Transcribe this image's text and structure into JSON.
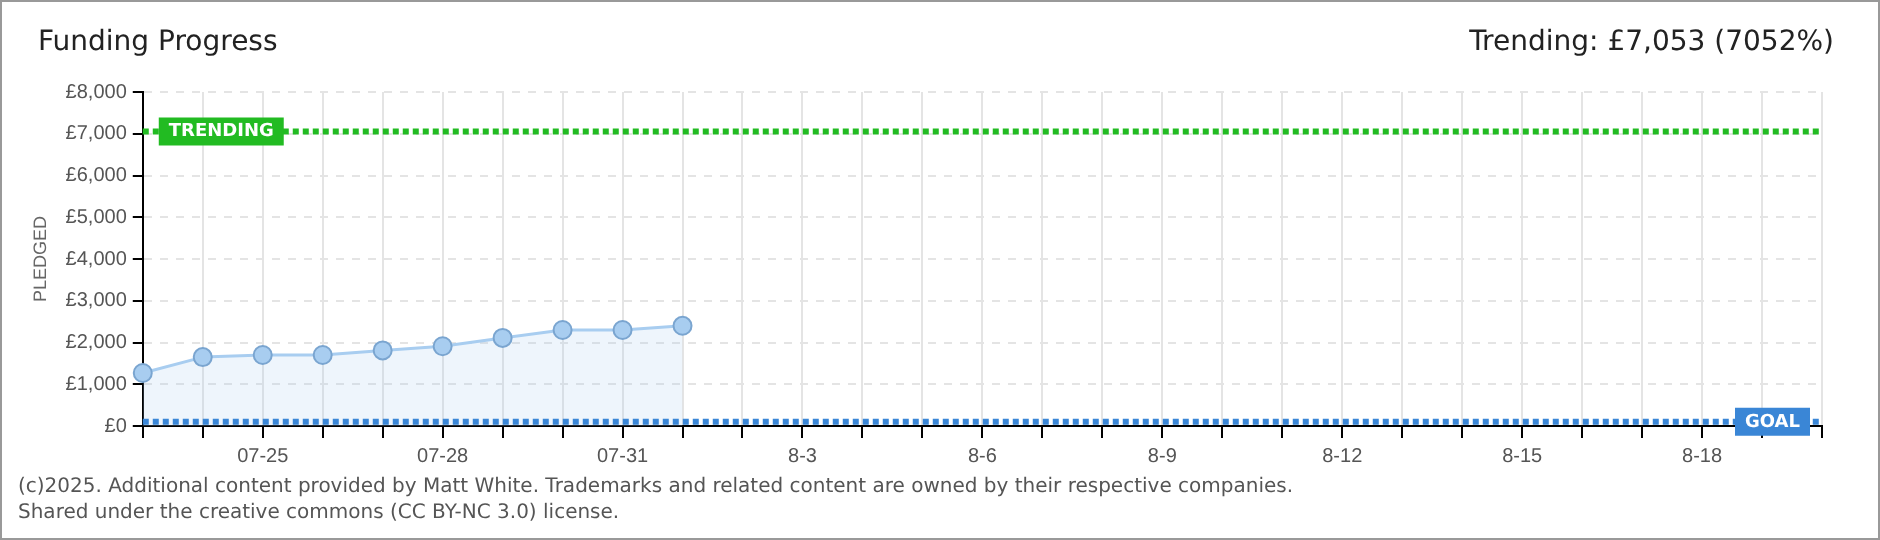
{
  "chart_data": {
    "type": "line",
    "title": "Funding Progress",
    "subtitle": "Trending: £7,053 (7052%)",
    "ylabel": "PLEDGED",
    "categories": [
      null,
      null,
      "07-25",
      null,
      null,
      "07-28",
      null,
      null,
      "07-31",
      null,
      null,
      "8-3",
      null,
      null,
      "8-6",
      null,
      null,
      "8-9",
      null,
      null,
      "8-12",
      null,
      null,
      "8-15",
      null,
      null,
      "8-18",
      null,
      null
    ],
    "series": [
      {
        "type": "area",
        "color": "#a8cdf0",
        "values": [
          1270,
          1650,
          1700,
          1700,
          1810,
          1910,
          2110,
          2300,
          2300,
          2400,
          null,
          null,
          null,
          null,
          null,
          null,
          null,
          null,
          null,
          null,
          null,
          null,
          null,
          null,
          null,
          null,
          null,
          null,
          null
        ]
      }
    ],
    "ylim": [
      0,
      8000
    ],
    "yticks": [
      {
        "value": 0,
        "label": "£0"
      },
      {
        "value": 1000,
        "label": "£1,000"
      },
      {
        "value": 2000,
        "label": "£2,000"
      },
      {
        "value": 3000,
        "label": "£3,000"
      },
      {
        "value": 4000,
        "label": "£4,000"
      },
      {
        "value": 5000,
        "label": "£5,000"
      },
      {
        "value": 6000,
        "label": "£6,000"
      },
      {
        "value": 7000,
        "label": "£7,000"
      },
      {
        "value": 8000,
        "label": "£8,000"
      }
    ],
    "ref_lines": [
      {
        "axis": "y",
        "value": 7053,
        "label": "TRENDING",
        "color": "#22bb22",
        "line_style": "dotted"
      },
      {
        "axis": "y",
        "value": 100,
        "label": "GOAL",
        "color": "#3a86d6",
        "line_style": "dotted"
      }
    ],
    "annotations": [
      "(c)2025. Additional content provided by Matt White. Trademarks and related content are owned by their respective companies.",
      "Shared under the creative commons (CC BY-NC 3.0) license."
    ],
    "grid": true,
    "legend": false,
    "marker": "circle",
    "line_style": "solid"
  }
}
